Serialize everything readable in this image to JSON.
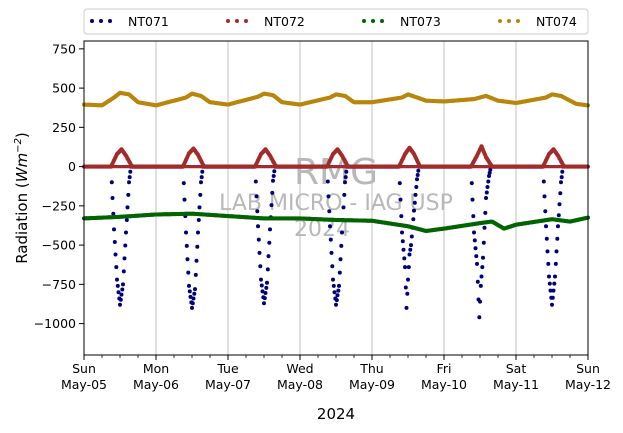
{
  "chart_data": {
    "type": "scatter",
    "title": "",
    "xlabel": "2024",
    "ylabel_prefix": "Radiation (",
    "ylabel_unit": "Wm",
    "ylabel_exp": "−2",
    "ylabel_suffix": ")",
    "ylim": [
      -1200,
      800
    ],
    "yticks": [
      {
        "value": 750,
        "label": "750"
      },
      {
        "value": 500,
        "label": "500"
      },
      {
        "value": 250,
        "label": "250"
      },
      {
        "value": 0,
        "label": "0"
      },
      {
        "value": -250,
        "label": "−250"
      },
      {
        "value": -500,
        "label": "−500"
      },
      {
        "value": -750,
        "label": "−750"
      },
      {
        "value": -1000,
        "label": "−1000"
      }
    ],
    "xlim": [
      "2024-05-05",
      "2024-05-12"
    ],
    "xticks": [
      {
        "date": "2024-05-05",
        "day": "Sun",
        "date_label": "May-05"
      },
      {
        "date": "2024-05-06",
        "day": "Mon",
        "date_label": "May-06"
      },
      {
        "date": "2024-05-07",
        "day": "Tue",
        "date_label": "May-07"
      },
      {
        "date": "2024-05-08",
        "day": "Wed",
        "date_label": "May-08"
      },
      {
        "date": "2024-05-09",
        "day": "Thu",
        "date_label": "May-09"
      },
      {
        "date": "2024-05-10",
        "day": "Fri",
        "date_label": "May-10"
      },
      {
        "date": "2024-05-11",
        "day": "Sat",
        "date_label": "May-11"
      },
      {
        "date": "2024-05-12",
        "day": "Sun",
        "date_label": "May-12"
      }
    ],
    "grid": "vertical",
    "legend": "top",
    "series": [
      {
        "name": "NT071",
        "color": "#00007f",
        "points": [
          [
            "2024-05-05 09:00",
            0
          ],
          [
            "2024-05-05 10:00",
            -400
          ],
          [
            "2024-05-05 11:00",
            -720
          ],
          [
            "2024-05-05 12:00",
            -880
          ],
          [
            "2024-05-05 13:00",
            -750
          ],
          [
            "2024-05-05 14:00",
            -420
          ],
          [
            "2024-05-05 15:00",
            -100
          ],
          [
            "2024-05-05 15:40",
            0
          ],
          [
            "2024-05-06 09:00",
            0
          ],
          [
            "2024-05-06 10:00",
            -420
          ],
          [
            "2024-05-06 11:00",
            -760
          ],
          [
            "2024-05-06 12:00",
            -900
          ],
          [
            "2024-05-06 13:00",
            -780
          ],
          [
            "2024-05-06 14:00",
            -420
          ],
          [
            "2024-05-06 15:00",
            -100
          ],
          [
            "2024-05-06 15:40",
            0
          ],
          [
            "2024-05-07 09:00",
            0
          ],
          [
            "2024-05-07 10:00",
            -380
          ],
          [
            "2024-05-07 11:00",
            -720
          ],
          [
            "2024-05-07 12:00",
            -870
          ],
          [
            "2024-05-07 13:00",
            -740
          ],
          [
            "2024-05-07 14:00",
            -400
          ],
          [
            "2024-05-07 15:00",
            -90
          ],
          [
            "2024-05-07 15:40",
            0
          ],
          [
            "2024-05-08 09:00",
            0
          ],
          [
            "2024-05-08 10:00",
            -380
          ],
          [
            "2024-05-08 11:00",
            -720
          ],
          [
            "2024-05-08 12:00",
            -880
          ],
          [
            "2024-05-08 13:00",
            -760
          ],
          [
            "2024-05-08 14:00",
            -420
          ],
          [
            "2024-05-08 15:00",
            -100
          ],
          [
            "2024-05-08 15:40",
            0
          ],
          [
            "2024-05-09 09:00",
            0
          ],
          [
            "2024-05-09 10:00",
            -420
          ],
          [
            "2024-05-09 11:00",
            -640
          ],
          [
            "2024-05-09 11:30",
            -900
          ],
          [
            "2024-05-09 12:00",
            -720
          ],
          [
            "2024-05-09 12:30",
            -560
          ],
          [
            "2024-05-09 13:00",
            -500
          ],
          [
            "2024-05-09 14:00",
            -280
          ],
          [
            "2024-05-09 15:00",
            -80
          ],
          [
            "2024-05-09 15:40",
            0
          ],
          [
            "2024-05-10 09:00",
            0
          ],
          [
            "2024-05-10 10:00",
            -420
          ],
          [
            "2024-05-10 11:00",
            -620
          ],
          [
            "2024-05-10 11:45",
            -960
          ],
          [
            "2024-05-10 12:15",
            -760
          ],
          [
            "2024-05-10 13:00",
            -580
          ],
          [
            "2024-05-10 14:00",
            -200
          ],
          [
            "2024-05-10 15:00",
            -60
          ],
          [
            "2024-05-10 15:40",
            0
          ],
          [
            "2024-05-11 09:00",
            0
          ],
          [
            "2024-05-11 10:00",
            -380
          ],
          [
            "2024-05-11 11:00",
            -700
          ],
          [
            "2024-05-11 12:00",
            -880
          ],
          [
            "2024-05-11 13:00",
            -700
          ],
          [
            "2024-05-11 14:00",
            -380
          ],
          [
            "2024-05-11 15:00",
            -100
          ],
          [
            "2024-05-11 15:40",
            0
          ]
        ]
      },
      {
        "name": "NT072",
        "color": "#a52a2a",
        "points": [
          [
            "2024-05-05 00:00",
            0
          ],
          [
            "2024-05-05 09:00",
            0
          ],
          [
            "2024-05-05 11:00",
            80
          ],
          [
            "2024-05-05 12:30",
            110
          ],
          [
            "2024-05-05 14:00",
            70
          ],
          [
            "2024-05-05 16:00",
            0
          ],
          [
            "2024-05-06 09:00",
            0
          ],
          [
            "2024-05-06 11:00",
            85
          ],
          [
            "2024-05-06 12:30",
            115
          ],
          [
            "2024-05-06 14:00",
            75
          ],
          [
            "2024-05-06 16:00",
            0
          ],
          [
            "2024-05-07 09:00",
            0
          ],
          [
            "2024-05-07 11:00",
            80
          ],
          [
            "2024-05-07 12:30",
            110
          ],
          [
            "2024-05-07 14:00",
            70
          ],
          [
            "2024-05-07 16:00",
            0
          ],
          [
            "2024-05-08 09:00",
            0
          ],
          [
            "2024-05-08 11:00",
            80
          ],
          [
            "2024-05-08 12:30",
            110
          ],
          [
            "2024-05-08 14:00",
            70
          ],
          [
            "2024-05-08 16:00",
            0
          ],
          [
            "2024-05-09 09:00",
            0
          ],
          [
            "2024-05-09 11:00",
            80
          ],
          [
            "2024-05-09 12:30",
            120
          ],
          [
            "2024-05-09 14:00",
            80
          ],
          [
            "2024-05-09 16:00",
            0
          ],
          [
            "2024-05-10 09:00",
            0
          ],
          [
            "2024-05-10 11:00",
            70
          ],
          [
            "2024-05-10 12:30",
            130
          ],
          [
            "2024-05-10 14:00",
            60
          ],
          [
            "2024-05-10 16:00",
            0
          ],
          [
            "2024-05-11 09:00",
            0
          ],
          [
            "2024-05-11 11:00",
            80
          ],
          [
            "2024-05-11 12:30",
            110
          ],
          [
            "2024-05-11 14:00",
            70
          ],
          [
            "2024-05-11 16:00",
            0
          ],
          [
            "2024-05-12 00:00",
            0
          ]
        ]
      },
      {
        "name": "NT073",
        "color": "#006400",
        "points": [
          [
            "2024-05-05 00:00",
            -330
          ],
          [
            "2024-05-05 12:00",
            -320
          ],
          [
            "2024-05-06 00:00",
            -305
          ],
          [
            "2024-05-06 12:00",
            -300
          ],
          [
            "2024-05-07 00:00",
            -315
          ],
          [
            "2024-05-07 12:00",
            -330
          ],
          [
            "2024-05-08 00:00",
            -330
          ],
          [
            "2024-05-08 12:00",
            -340
          ],
          [
            "2024-05-09 00:00",
            -345
          ],
          [
            "2024-05-09 12:00",
            -380
          ],
          [
            "2024-05-09 18:00",
            -410
          ],
          [
            "2024-05-10 00:00",
            -395
          ],
          [
            "2024-05-10 12:00",
            -360
          ],
          [
            "2024-05-10 16:00",
            -350
          ],
          [
            "2024-05-10 20:00",
            -395
          ],
          [
            "2024-05-11 00:00",
            -370
          ],
          [
            "2024-05-11 12:00",
            -335
          ],
          [
            "2024-05-11 18:00",
            -350
          ],
          [
            "2024-05-12 00:00",
            -325
          ]
        ]
      },
      {
        "name": "NT074",
        "color": "#b8860b",
        "points": [
          [
            "2024-05-05 00:00",
            395
          ],
          [
            "2024-05-05 06:00",
            390
          ],
          [
            "2024-05-05 10:00",
            440
          ],
          [
            "2024-05-05 12:00",
            470
          ],
          [
            "2024-05-05 15:00",
            460
          ],
          [
            "2024-05-05 18:00",
            410
          ],
          [
            "2024-05-06 00:00",
            390
          ],
          [
            "2024-05-06 10:00",
            440
          ],
          [
            "2024-05-06 12:00",
            465
          ],
          [
            "2024-05-06 15:00",
            450
          ],
          [
            "2024-05-06 18:00",
            410
          ],
          [
            "2024-05-07 00:00",
            395
          ],
          [
            "2024-05-07 10:00",
            445
          ],
          [
            "2024-05-07 12:00",
            465
          ],
          [
            "2024-05-07 15:00",
            455
          ],
          [
            "2024-05-07 18:00",
            410
          ],
          [
            "2024-05-08 00:00",
            395
          ],
          [
            "2024-05-08 10:00",
            440
          ],
          [
            "2024-05-08 12:00",
            460
          ],
          [
            "2024-05-08 15:00",
            450
          ],
          [
            "2024-05-08 18:00",
            410
          ],
          [
            "2024-05-09 00:00",
            410
          ],
          [
            "2024-05-09 10:00",
            440
          ],
          [
            "2024-05-09 12:00",
            460
          ],
          [
            "2024-05-09 18:00",
            420
          ],
          [
            "2024-05-10 00:00",
            415
          ],
          [
            "2024-05-10 10:00",
            430
          ],
          [
            "2024-05-10 14:00",
            450
          ],
          [
            "2024-05-10 18:00",
            420
          ],
          [
            "2024-05-11 00:00",
            405
          ],
          [
            "2024-05-11 10:00",
            440
          ],
          [
            "2024-05-11 12:00",
            460
          ],
          [
            "2024-05-11 15:00",
            450
          ],
          [
            "2024-05-11 20:00",
            400
          ],
          [
            "2024-05-12 00:00",
            390
          ]
        ]
      }
    ]
  },
  "watermark": {
    "line1": "RMG",
    "line2": "LAB MICRO - IAG USP",
    "line3": "2024"
  }
}
